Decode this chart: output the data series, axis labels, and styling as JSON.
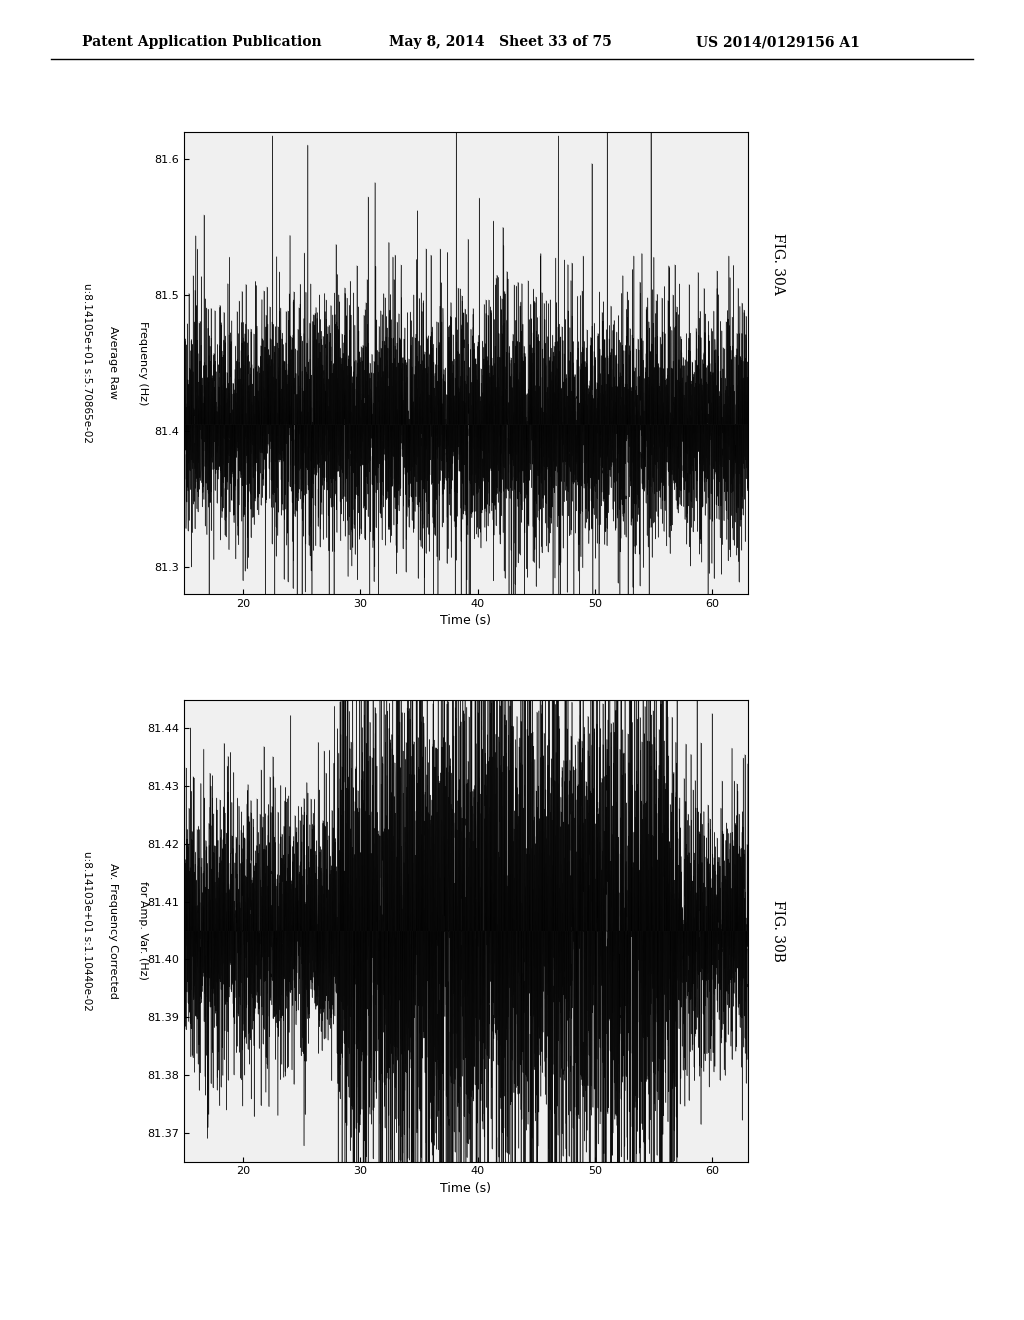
{
  "header_left": "Patent Application Publication",
  "header_mid": "May 8, 2014   Sheet 33 of 75",
  "header_right": "US 2014/0129156 A1",
  "fig_label_A": "FIG. 30A",
  "fig_label_B": "FIG. 30B",
  "subplot_A": {
    "title_text": "u:8.14105e+01 s:5.70865e-02",
    "xlabel": "Time (s)",
    "ylabel_line1": "Average Raw",
    "ylabel_line2": "Frequency (Hz)",
    "xlim": [
      15,
      63
    ],
    "xticks": [
      20,
      30,
      40,
      50,
      60
    ],
    "ylim": [
      81.28,
      81.62
    ],
    "yticks": [
      81.3,
      81.4,
      81.5,
      81.6
    ]
  },
  "subplot_B": {
    "title_text": "u:8.14103e+01 s:1.10440e-02",
    "xlabel": "Time (s)",
    "ylabel_line1": "Av. Frequency Corrected",
    "ylabel_line2": "for Amp. Var. (Hz)",
    "xlim": [
      15,
      63
    ],
    "xticks": [
      20,
      30,
      40,
      50,
      60
    ],
    "ylim": [
      81.365,
      81.445
    ],
    "yticks": [
      81.37,
      81.38,
      81.39,
      81.4,
      81.41,
      81.42,
      81.43,
      81.44
    ]
  },
  "background_color": "#ffffff",
  "plot_bg_color": "#f0f0f0",
  "signal_color": "#000000",
  "seed": 42
}
